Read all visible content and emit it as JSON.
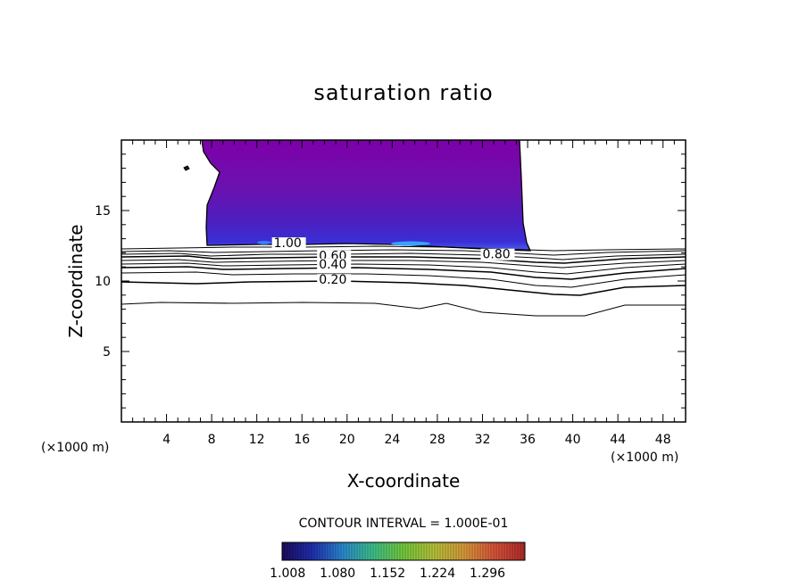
{
  "chart_data": {
    "type": "contour",
    "title": "saturation ratio",
    "xlabel": "X-coordinate",
    "ylabel": "Z-coordinate",
    "x_unit_left": "(×1000 m)",
    "x_unit_right": "(×1000 m)",
    "xlim": [
      0,
      50
    ],
    "ylim": [
      0,
      20
    ],
    "x_ticks": [
      4,
      8,
      12,
      16,
      20,
      24,
      28,
      32,
      36,
      40,
      44,
      48
    ],
    "y_ticks": [
      5,
      10,
      15
    ],
    "grid": false,
    "contour_interval_text": "CONTOUR INTERVAL = 1.000E-01",
    "contour_labels": [
      {
        "text": "1.00",
        "x": 13.5,
        "z": 12.4
      },
      {
        "text": "0.80",
        "x": 32.0,
        "z": 11.6
      },
      {
        "text": "0.60",
        "x": 17.5,
        "z": 11.5
      },
      {
        "text": "0.40",
        "x": 17.5,
        "z": 10.9
      },
      {
        "text": "0.20",
        "x": 17.5,
        "z": 9.8
      }
    ],
    "supersaturated_region": {
      "x_range": [
        7.5,
        36.0
      ],
      "z_range": [
        12.4,
        19.8
      ]
    },
    "colorbar": {
      "tick_labels": [
        "1.008",
        "1.080",
        "1.152",
        "1.224",
        "1.296"
      ],
      "min": 1.0,
      "max": 1.35,
      "colors": [
        "#1a0a5c",
        "#1f2fb0",
        "#2a8ad0",
        "#3ec08a",
        "#74c93c",
        "#b7c23a",
        "#d79a3a",
        "#d9533a",
        "#b02a2a"
      ]
    }
  }
}
